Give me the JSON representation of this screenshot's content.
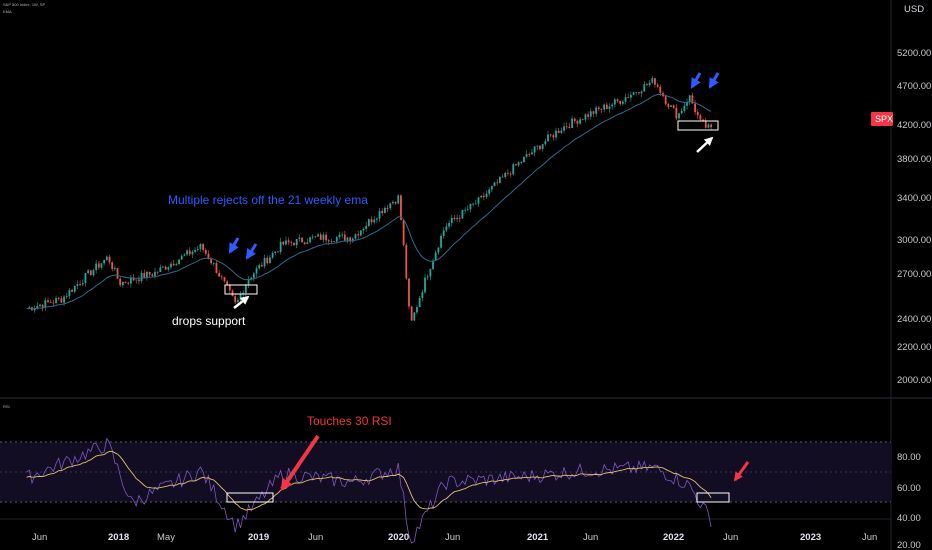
{
  "header": {
    "title": "S&P 500 Index, 1W, SP",
    "indicator_name": "EMA",
    "rsi_pane_label": "RSI"
  },
  "colors": {
    "background": "#000000",
    "up_candle": "#26a69a",
    "down_candle": "#ef5350",
    "ema_line": "#2e6b8a",
    "rsi_line": "#7e57c2",
    "rsi_ma_line": "#e0c070",
    "rsi_band": "#1a1230",
    "blue_annotation": "#2f5bff",
    "red_annotation": "#f23645",
    "price_tag": "#f23645"
  },
  "price_axis": {
    "currency": "USD",
    "ticks": [
      "5200.00",
      "4700.00",
      "4200.00",
      "3800.00",
      "3400.00",
      "3000.00",
      "2700.00",
      "2400.00",
      "2200.00",
      "2000.00"
    ],
    "tag": "SPX"
  },
  "rsi_axis": {
    "ticks": [
      "80.00",
      "60.00",
      "40.00",
      "20.00"
    ]
  },
  "time_axis": {
    "ticks": [
      {
        "label": "Jun",
        "year": false
      },
      {
        "label": "2018",
        "year": true
      },
      {
        "label": "May",
        "year": false
      },
      {
        "label": "2019",
        "year": true
      },
      {
        "label": "Jun",
        "year": false
      },
      {
        "label": "2020",
        "year": true
      },
      {
        "label": "Jun",
        "year": false
      },
      {
        "label": "2021",
        "year": true
      },
      {
        "label": "Jun",
        "year": false
      },
      {
        "label": "2022",
        "year": true
      },
      {
        "label": "Jun",
        "year": false
      },
      {
        "label": "2023",
        "year": true
      },
      {
        "label": "Jun",
        "year": false
      }
    ]
  },
  "annotations": {
    "rejects_text": "Multiple rejects off the 21 weekly ema",
    "drops_support_text": "drops support",
    "rsi_text": "Touches 30 RSI"
  },
  "chart_data": [
    {
      "type": "line",
      "title": "S&P 500 Index, 1W, SP",
      "ylabel": "USD",
      "ylim": [
        1900,
        5400
      ],
      "yscale": "log",
      "x": [
        "2017-06",
        "2017-09",
        "2018-01",
        "2018-02",
        "2018-05",
        "2018-09",
        "2018-10",
        "2018-12",
        "2019-01",
        "2019-04",
        "2019-07",
        "2019-10",
        "2020-01",
        "2020-02",
        "2020-03",
        "2020-06",
        "2020-09",
        "2020-12",
        "2021-04",
        "2021-06",
        "2021-09",
        "2021-12",
        "2022-01",
        "2022-02",
        "2022-03",
        "2022-04",
        "2022-05"
      ],
      "series": [
        {
          "name": "SPX",
          "values": [
            2430,
            2500,
            2830,
            2620,
            2700,
            2920,
            2780,
            2450,
            2650,
            2940,
            3000,
            3000,
            3300,
            3380,
            2300,
            3100,
            3350,
            3700,
            4150,
            4300,
            4500,
            4780,
            4500,
            4300,
            4560,
            4200,
            4120
          ]
        }
      ]
    },
    {
      "type": "line",
      "title": "RSI",
      "ylim": [
        15,
        95
      ],
      "x": [
        "2017-06",
        "2018-01",
        "2018-03",
        "2018-09",
        "2018-12",
        "2019-04",
        "2019-10",
        "2020-02",
        "2020-03",
        "2020-06",
        "2021-01",
        "2021-06",
        "2021-12",
        "2022-03",
        "2022-05"
      ],
      "series": [
        {
          "name": "RSI",
          "values": [
            65,
            88,
            48,
            70,
            32,
            68,
            62,
            72,
            22,
            62,
            66,
            70,
            72,
            60,
            35
          ]
        }
      ],
      "reference_lines": [
        70,
        50,
        30
      ]
    }
  ]
}
